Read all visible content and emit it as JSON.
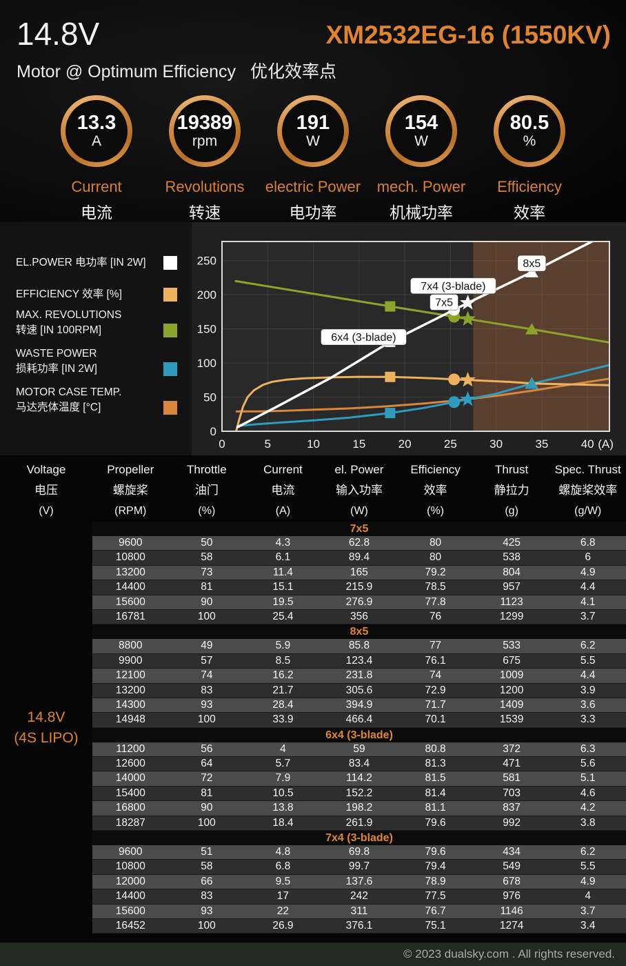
{
  "header": {
    "voltage": "14.8V",
    "model": "XM2532EG-16 (1550KV)",
    "subtitle_en": "Motor @ Optimum Efficiency",
    "subtitle_zh": "优化效率点"
  },
  "gauges": [
    {
      "value": "13.3",
      "unit": "A",
      "label_en": "Current",
      "label_zh": "电流"
    },
    {
      "value": "19389",
      "unit": "rpm",
      "label_en": "Revolutions",
      "label_zh": "转速"
    },
    {
      "value": "191",
      "unit": "W",
      "label_en": "electric Power",
      "label_zh": "电功率"
    },
    {
      "value": "154",
      "unit": "W",
      "label_en": "mech. Power",
      "label_zh": "机械功率"
    },
    {
      "value": "80.5",
      "unit": "%",
      "label_en": "Efficiency",
      "label_zh": "效率"
    }
  ],
  "legend": {
    "items": [
      {
        "line1": "EL.POWER 电功率 [IN 2W]",
        "line2": "",
        "color": "#ffffff"
      },
      {
        "line1": "EFFICIENCY 效率 [%]",
        "line2": "",
        "color": "#eeb25f"
      },
      {
        "line1": "MAX. REVOLUTIONS",
        "line2": "转速 [IN 100RPM]",
        "color": "#8ca42c"
      },
      {
        "line1": "WASTE POWER",
        "line2": "损耗功率 [IN 2W]",
        "color": "#2d9cc0"
      },
      {
        "line1": "MOTOR CASE TEMP.",
        "line2": "马达壳体温度 [°C]",
        "color": "#d8873c"
      }
    ]
  },
  "chart_data": {
    "type": "line",
    "x_axis": {
      "min": 0,
      "max": 42.4,
      "ticks": [
        0,
        5,
        10,
        15,
        20,
        25,
        30,
        35,
        40
      ],
      "suffix": "(A)"
    },
    "y_axis": {
      "min": 0,
      "max": 278,
      "ticks": [
        0,
        50,
        100,
        150,
        200,
        250
      ]
    },
    "grid": "on",
    "shaded_region": {
      "from": 27.5,
      "to": 42.4,
      "color": "rgba(150,92,56,0.45)"
    },
    "series": [
      {
        "id": "case_temp",
        "name": "MOTOR CASE TEMP. [°C]",
        "color": "#d8873c",
        "width": 3,
        "points": [
          [
            1.6,
            29
          ],
          [
            4,
            29
          ],
          [
            7,
            30
          ],
          [
            10,
            31.5
          ],
          [
            14,
            33.5
          ],
          [
            18,
            36.5
          ],
          [
            22,
            40.5
          ],
          [
            26,
            45.5
          ],
          [
            30,
            52
          ],
          [
            34,
            59.5
          ],
          [
            38,
            68
          ],
          [
            42.4,
            77
          ]
        ]
      },
      {
        "id": "waste_power",
        "name": "WASTE POWER [IN 2W]",
        "color": "#2d9cc0",
        "width": 3,
        "points": [
          [
            1.7,
            8
          ],
          [
            5,
            11.5
          ],
          [
            10,
            16
          ],
          [
            14,
            20
          ],
          [
            18.4,
            26.7
          ],
          [
            22,
            34
          ],
          [
            25.4,
            42.7
          ],
          [
            26.9,
            46.8
          ],
          [
            30,
            55
          ],
          [
            33.9,
            69.7
          ],
          [
            37.5,
            81
          ],
          [
            42.4,
            97
          ]
        ]
      },
      {
        "id": "efficiency",
        "name": "EFFICIENCY [%]",
        "color": "#eeb25f",
        "width": 3,
        "points": [
          [
            1.55,
            0
          ],
          [
            1.9,
            18
          ],
          [
            2.3,
            36
          ],
          [
            2.8,
            50
          ],
          [
            3.5,
            60
          ],
          [
            4.5,
            68
          ],
          [
            5.5,
            72.5
          ],
          [
            7,
            75.5
          ],
          [
            9,
            77.5
          ],
          [
            12,
            79
          ],
          [
            15,
            79.8
          ],
          [
            18.4,
            79.6
          ],
          [
            21,
            78.6
          ],
          [
            23.5,
            77.3
          ],
          [
            25.4,
            76
          ],
          [
            26.9,
            75.1
          ],
          [
            29.5,
            73.5
          ],
          [
            31.5,
            72.3
          ],
          [
            33.9,
            70.1
          ],
          [
            37,
            69
          ],
          [
            42.4,
            67.5
          ]
        ]
      },
      {
        "id": "revolutions",
        "name": "MAX. REVOLUTIONS [IN 100RPM]",
        "color": "#8ca42c",
        "width": 3,
        "points": [
          [
            1.5,
            220
          ],
          [
            18.4,
            183
          ],
          [
            25.4,
            167.8
          ],
          [
            26.9,
            164.5
          ],
          [
            33.9,
            149.5
          ],
          [
            42.4,
            130
          ]
        ]
      },
      {
        "id": "el_power",
        "name": "EL.POWER [IN 2W]",
        "color": "#ffffff",
        "width": 3.5,
        "points": [
          [
            1.7,
            6
          ],
          [
            6,
            36
          ],
          [
            12,
            79
          ],
          [
            18.4,
            131
          ],
          [
            25.4,
            178
          ],
          [
            26.9,
            188
          ],
          [
            33.9,
            233
          ],
          [
            42.4,
            291
          ]
        ]
      }
    ],
    "marker_series_order": [
      "efficiency",
      "waste_power",
      "revolutions",
      "el_power"
    ],
    "markers": [
      {
        "prop": "6x4 (3-blade)",
        "shape": "square",
        "x": 18.4,
        "ys": [
          79.6,
          26.7,
          182.9,
          131.0
        ]
      },
      {
        "prop": "7x5",
        "shape": "circle",
        "x": 25.4,
        "ys": [
          76.0,
          42.7,
          167.8,
          178.0
        ]
      },
      {
        "prop": "7x4 (3-blade)",
        "shape": "star",
        "x": 26.9,
        "ys": [
          75.1,
          46.8,
          164.5,
          188.1
        ]
      },
      {
        "prop": "8x5",
        "shape": "triangle",
        "x": 33.9,
        "ys": [
          70.1,
          69.7,
          149.5,
          233.2
        ]
      }
    ],
    "annotations": [
      {
        "text": "6x4 (3-blade)",
        "x": 15.5,
        "y": 138
      },
      {
        "text": "7x5",
        "x": 24.3,
        "y": 189
      },
      {
        "text": "7x4 (3-blade)",
        "x": 25.3,
        "y": 213
      },
      {
        "text": "8x5",
        "x": 33.9,
        "y": 246
      }
    ]
  },
  "table": {
    "voltage_label": {
      "line1": "14.8V",
      "line2": "(4S LIPO)"
    },
    "headers": [
      {
        "en": "Voltage",
        "zh": "电压",
        "unit": "(V)"
      },
      {
        "en": "Propeller",
        "zh": "螺旋桨",
        "unit": "(RPM)"
      },
      {
        "en": "Throttle",
        "zh": "油门",
        "unit": "(%)"
      },
      {
        "en": "Current",
        "zh": "电流",
        "unit": "(A)"
      },
      {
        "en": "el. Power",
        "zh": "输入功率",
        "unit": "(W)"
      },
      {
        "en": "Efficiency",
        "zh": "效率",
        "unit": "(%)"
      },
      {
        "en": "Thrust",
        "zh": "静拉力",
        "unit": "(g)"
      },
      {
        "en": "Spec. Thrust",
        "zh": "螺旋桨效率",
        "unit": "(g/W)"
      }
    ],
    "sections": [
      {
        "name": "7x5",
        "rows": [
          [
            "9600",
            "50",
            "4.3",
            "62.8",
            "80",
            "425",
            "6.8"
          ],
          [
            "10800",
            "58",
            "6.1",
            "89.4",
            "80",
            "538",
            "6"
          ],
          [
            "13200",
            "73",
            "11.4",
            "165",
            "79.2",
            "804",
            "4.9"
          ],
          [
            "14400",
            "81",
            "15.1",
            "215.9",
            "78.5",
            "957",
            "4.4"
          ],
          [
            "15600",
            "90",
            "19.5",
            "276.9",
            "77.8",
            "1123",
            "4.1"
          ],
          [
            "16781",
            "100",
            "25.4",
            "356",
            "76",
            "1299",
            "3.7"
          ]
        ]
      },
      {
        "name": "8x5",
        "rows": [
          [
            "8800",
            "49",
            "5.9",
            "85.8",
            "77",
            "533",
            "6.2"
          ],
          [
            "9900",
            "57",
            "8.5",
            "123.4",
            "76.1",
            "675",
            "5.5"
          ],
          [
            "12100",
            "74",
            "16.2",
            "231.8",
            "74",
            "1009",
            "4.4"
          ],
          [
            "13200",
            "83",
            "21.7",
            "305.6",
            "72.9",
            "1200",
            "3.9"
          ],
          [
            "14300",
            "93",
            "28.4",
            "394.9",
            "71.7",
            "1409",
            "3.6"
          ],
          [
            "14948",
            "100",
            "33.9",
            "466.4",
            "70.1",
            "1539",
            "3.3"
          ]
        ]
      },
      {
        "name": "6x4 (3-blade)",
        "rows": [
          [
            "11200",
            "56",
            "4",
            "59",
            "80.8",
            "372",
            "6.3"
          ],
          [
            "12600",
            "64",
            "5.7",
            "83.4",
            "81.3",
            "471",
            "5.6"
          ],
          [
            "14000",
            "72",
            "7.9",
            "114.2",
            "81.5",
            "581",
            "5.1"
          ],
          [
            "15400",
            "81",
            "10.5",
            "152.2",
            "81.4",
            "703",
            "4.6"
          ],
          [
            "16800",
            "90",
            "13.8",
            "198.2",
            "81.1",
            "837",
            "4.2"
          ],
          [
            "18287",
            "100",
            "18.4",
            "261.9",
            "79.6",
            "992",
            "3.8"
          ]
        ]
      },
      {
        "name": "7x4 (3-blade)",
        "rows": [
          [
            "9600",
            "51",
            "4.8",
            "69.8",
            "79.6",
            "434",
            "6.2"
          ],
          [
            "10800",
            "58",
            "6.8",
            "99.7",
            "79.4",
            "549",
            "5.5"
          ],
          [
            "12000",
            "66",
            "9.5",
            "137.6",
            "78.9",
            "678",
            "4.9"
          ],
          [
            "14400",
            "83",
            "17",
            "242",
            "77.5",
            "976",
            "4"
          ],
          [
            "15600",
            "93",
            "22",
            "311",
            "76.7",
            "1146",
            "3.7"
          ],
          [
            "16452",
            "100",
            "26.9",
            "376.1",
            "75.1",
            "1274",
            "3.4"
          ]
        ]
      }
    ]
  },
  "footer": {
    "copyright": "© 2023 dualsky.com . All rights reserved."
  }
}
